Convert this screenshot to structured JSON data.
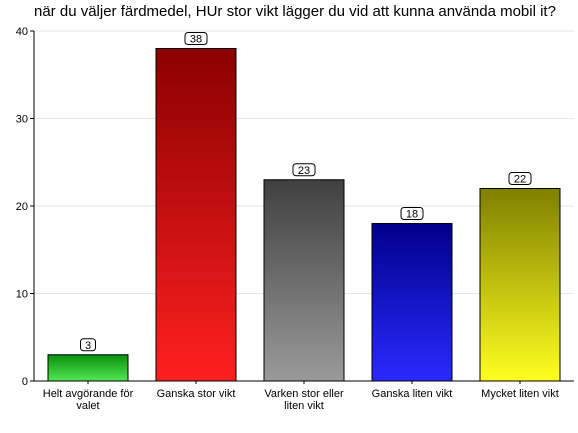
{
  "chart_data": {
    "type": "bar",
    "title": "när du väljer färdmedel, HUr stor vikt lägger du vid att kunna använda mobil it?",
    "xlabel": "",
    "ylabel": "",
    "ylim": [
      0,
      40
    ],
    "yticks": [
      0,
      10,
      20,
      30,
      40
    ],
    "grid": true,
    "legend": "none",
    "categories": [
      [
        "Helt avgörande för",
        "valet"
      ],
      [
        "Ganska stor vikt"
      ],
      [
        "Varken stor eller",
        "liten vikt"
      ],
      [
        "Ganska liten vikt"
      ],
      [
        "Mycket liten vikt"
      ]
    ],
    "values": [
      3,
      38,
      23,
      18,
      22
    ],
    "colors": [
      [
        "#0a8f0a",
        "#52e852"
      ],
      [
        "#8b0000",
        "#ff2020"
      ],
      [
        "#404040",
        "#9a9a9a"
      ],
      [
        "#00008b",
        "#2a2aff"
      ],
      [
        "#808000",
        "#ffff20"
      ]
    ]
  }
}
